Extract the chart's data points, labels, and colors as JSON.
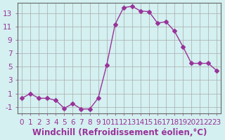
{
  "x": [
    0,
    1,
    2,
    3,
    4,
    5,
    6,
    7,
    8,
    9,
    10,
    11,
    12,
    13,
    14,
    15,
    16,
    17,
    18,
    19,
    20,
    21,
    22,
    23
  ],
  "y": [
    0.3,
    1.0,
    0.3,
    0.3,
    0.0,
    -1.2,
    -0.5,
    -1.3,
    -1.3,
    0.3,
    5.2,
    11.3,
    13.8,
    14.0,
    13.3,
    13.2,
    11.5,
    11.7,
    10.3,
    8.0,
    5.5,
    5.5,
    5.5,
    4.4
  ],
  "line_color": "#993399",
  "marker": "D",
  "marker_size": 3,
  "bg_color": "#d4f0f0",
  "grid_color": "#aaaaaa",
  "xlabel": "Windchill (Refroidissement éolien,°C)",
  "xlim": [
    -0.5,
    23.5
  ],
  "ylim": [
    -2,
    14.5
  ],
  "yticks": [
    -1,
    1,
    3,
    5,
    7,
    9,
    11,
    13
  ],
  "xtick_labels": [
    "0",
    "1",
    "2",
    "3",
    "4",
    "5",
    "6",
    "7",
    "8",
    "9",
    "10",
    "11",
    "12",
    "13",
    "14",
    "15",
    "16",
    "17",
    "18",
    "19",
    "20",
    "21",
    "22",
    "23"
  ],
  "xlabel_fontsize": 8.5,
  "tick_fontsize": 7.5,
  "axis_color": "#666666"
}
